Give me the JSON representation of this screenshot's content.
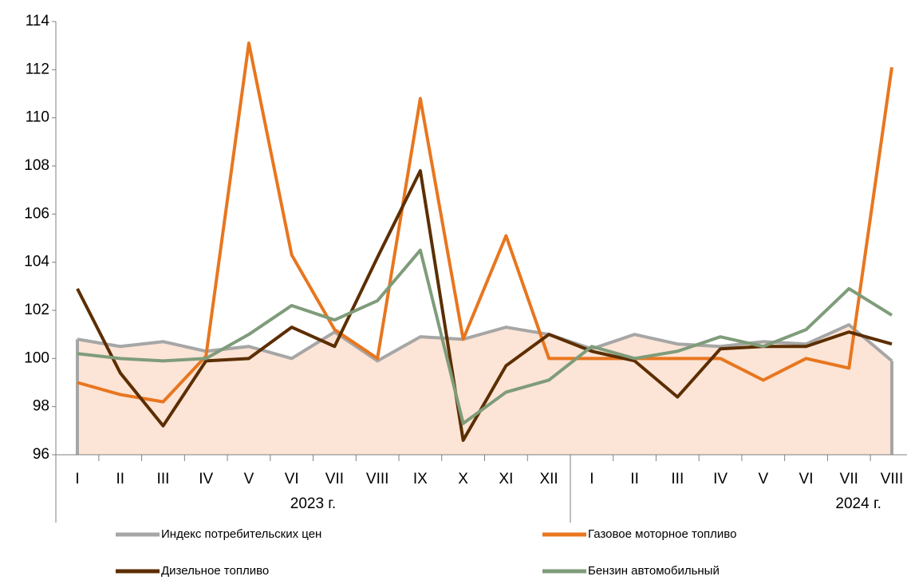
{
  "chart_data": {
    "type": "line",
    "categories": [
      "I",
      "II",
      "III",
      "IV",
      "V",
      "VI",
      "VII",
      "VIII",
      "IX",
      "X",
      "XI",
      "XII",
      "I",
      "II",
      "III",
      "IV",
      "V",
      "VI",
      "VII",
      "VIII"
    ],
    "x_groups": [
      {
        "label": "2023 г.",
        "size": 12
      },
      {
        "label": "2024 г.",
        "size": 8
      }
    ],
    "series": [
      {
        "name": "Индекс потребительских цен",
        "color": "#a6a6a6",
        "fill": "#fce4d6",
        "style": "area",
        "values": [
          100.8,
          100.5,
          100.7,
          100.3,
          100.5,
          100.0,
          101.1,
          99.9,
          100.9,
          100.8,
          101.3,
          101.0,
          100.4,
          101.0,
          100.6,
          100.5,
          100.7,
          100.6,
          101.4,
          99.9
        ]
      },
      {
        "name": "Газовое моторное топливо",
        "color": "#e8761f",
        "style": "line",
        "values": [
          99.0,
          98.5,
          98.2,
          100.1,
          113.1,
          104.3,
          101.2,
          100.0,
          110.8,
          100.8,
          105.1,
          100.0,
          100.0,
          100.0,
          100.0,
          100.0,
          99.1,
          100.0,
          99.6,
          112.1
        ]
      },
      {
        "name": "Дизельное топливо",
        "color": "#5c2e00",
        "style": "line",
        "values": [
          102.9,
          99.4,
          97.2,
          99.9,
          100.0,
          101.3,
          100.5,
          104.2,
          107.8,
          96.6,
          99.7,
          101.0,
          100.3,
          99.9,
          98.4,
          100.4,
          100.5,
          100.5,
          101.1,
          100.6
        ]
      },
      {
        "name": "Бензин автомобильный",
        "color": "#7f9c7a",
        "style": "line",
        "values": [
          100.2,
          100.0,
          99.9,
          100.0,
          101.0,
          102.2,
          101.6,
          102.4,
          104.5,
          97.3,
          98.6,
          99.1,
          100.5,
          100.0,
          100.3,
          100.9,
          100.5,
          101.2,
          102.9,
          101.8
        ]
      }
    ],
    "ylim": [
      96,
      114
    ],
    "yticks": [
      96,
      98,
      100,
      102,
      104,
      106,
      108,
      110,
      112,
      114
    ],
    "grid": false,
    "legend": "bottom"
  }
}
